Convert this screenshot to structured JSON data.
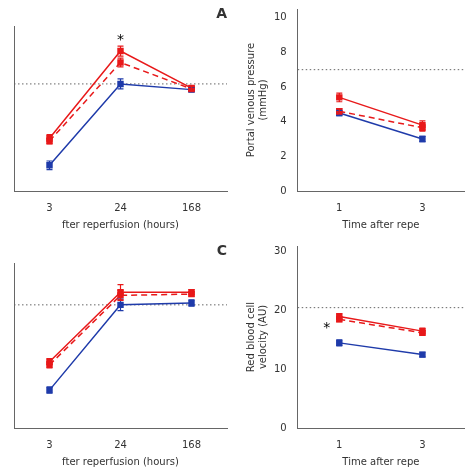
{
  "chart_data": [
    {
      "type": "line",
      "title": "A",
      "xlabel": "fter reperfusion (hours)",
      "categories": [
        "3",
        "24",
        "168"
      ],
      "series": [
        {
          "color": "#1f3baa",
          "line_style": "solid",
          "marker": "square",
          "values": [
            1.3,
            7.0,
            6.6
          ],
          "errors": [
            0.3,
            0.35,
            0.15
          ]
        },
        {
          "color": "#e8191a",
          "line_style": "dashed",
          "marker": "square",
          "values": [
            3.0,
            8.5,
            6.65
          ],
          "errors": [
            0.2,
            0.3,
            0.15
          ]
        },
        {
          "color": "#e8191a",
          "line_style": "solid",
          "marker": "square",
          "values": [
            3.2,
            9.3,
            6.7
          ],
          "errors": [
            0.25,
            0.35,
            0.2
          ]
        }
      ],
      "ylim": [
        -0.5,
        11
      ],
      "tick_labels": "x",
      "grid": false,
      "hlines": [
        {
          "y": 7.0,
          "color": "#666666",
          "line_style": "dotted"
        }
      ],
      "annotations": [
        {
          "text": "*",
          "x": 1,
          "y": 9.85
        }
      ]
    },
    {
      "type": "line",
      "xlabel": "Time after repe",
      "ylabel": "Portal venous pressure\n(mmHg)",
      "categories": [
        "1",
        "3"
      ],
      "series": [
        {
          "color": "#1f3baa",
          "line_style": "solid",
          "marker": "square",
          "values": [
            4.5,
            3.0
          ],
          "errors": [
            0.15,
            0.15
          ]
        },
        {
          "color": "#e8191a",
          "line_style": "dashed",
          "marker": "square",
          "values": [
            4.6,
            3.65
          ],
          "errors": [
            0.15,
            0.2
          ]
        },
        {
          "color": "#e8191a",
          "line_style": "solid",
          "marker": "square",
          "values": [
            5.4,
            3.8
          ],
          "errors": [
            0.25,
            0.25
          ]
        }
      ],
      "ylim": [
        0,
        10.5
      ],
      "yticks": [
        0,
        2,
        4,
        6,
        8,
        10
      ],
      "grid": false,
      "hlines": [
        {
          "y": 7.0,
          "color": "#666666",
          "line_style": "dotted"
        }
      ]
    },
    {
      "type": "line",
      "title": "C",
      "xlabel": "fter reperfusion (hours)",
      "categories": [
        "3",
        "24",
        "168"
      ],
      "series": [
        {
          "color": "#1f3baa",
          "line_style": "solid",
          "marker": "square",
          "values": [
            11.0,
            24.5,
            24.8
          ],
          "errors": [
            0.5,
            0.9,
            0.5
          ]
        },
        {
          "color": "#e8191a",
          "line_style": "dashed",
          "marker": "square",
          "values": [
            15.0,
            26.0,
            26.2
          ],
          "errors": [
            0.5,
            0.8,
            0.35
          ]
        },
        {
          "color": "#e8191a",
          "line_style": "solid",
          "marker": "square",
          "values": [
            15.5,
            26.5,
            26.5
          ],
          "errors": [
            0.5,
            1.2,
            0.4
          ]
        }
      ],
      "ylim": [
        5,
        31
      ],
      "tick_labels": "x",
      "grid": false,
      "hlines": [
        {
          "y": 24.5,
          "color": "#666666",
          "line_style": "dotted"
        }
      ]
    },
    {
      "type": "line",
      "xlabel": "Time after repe",
      "ylabel": "Red blood cell\nvelocity (AU)",
      "categories": [
        "1",
        "3"
      ],
      "series": [
        {
          "color": "#1f3baa",
          "line_style": "solid",
          "marker": "square",
          "values": [
            14.5,
            12.5
          ],
          "errors": [
            0.5,
            0.4
          ]
        },
        {
          "color": "#e8191a",
          "line_style": "dashed",
          "marker": "square",
          "values": [
            18.5,
            16.2
          ],
          "errors": [
            0.4,
            0.4
          ]
        },
        {
          "color": "#e8191a",
          "line_style": "solid",
          "marker": "square",
          "values": [
            19.0,
            16.5
          ],
          "errors": [
            0.5,
            0.5
          ]
        }
      ],
      "ylim": [
        0,
        31
      ],
      "yticks": [
        0,
        10,
        20,
        30
      ],
      "grid": false,
      "hlines": [
        {
          "y": 20.5,
          "color": "#666666",
          "line_style": "dotted"
        }
      ],
      "annotations": [
        {
          "text": "*",
          "x": -0.15,
          "y": 16.5
        }
      ]
    }
  ]
}
